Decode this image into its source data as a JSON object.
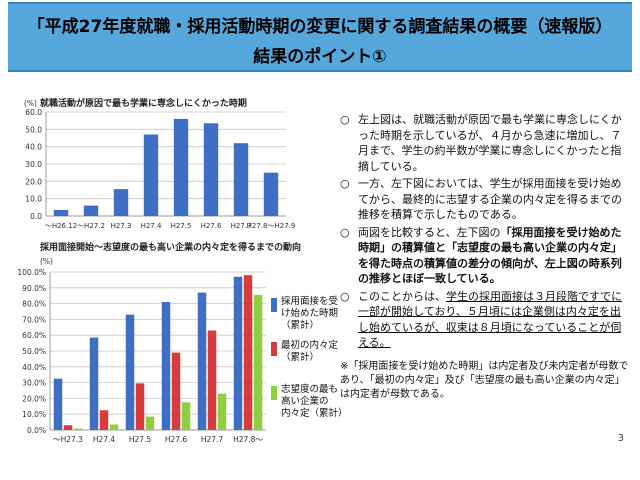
{
  "title": {
    "line1": "「平成27年度就職・採用活動時期の変更に関する調査結果の概要（速報版）",
    "line2": "結果のポイント①"
  },
  "chart_data": [
    {
      "type": "bar",
      "title": "就職活動が原因で最も学業に専念しにくかった時期",
      "ylabel": "(%)",
      "categories": [
        "～H26.12",
        "～H27.2",
        "H27.3",
        "H27.4",
        "H27.5",
        "H27.6",
        "H27.7",
        "H27.8～H27.9"
      ],
      "values": [
        3.5,
        6,
        15.5,
        47,
        56,
        53.5,
        42,
        25
      ],
      "ylim": [
        0,
        60
      ],
      "yticks": [
        "0.0",
        "10.0",
        "20.0",
        "30.0",
        "40.0",
        "50.0",
        "60.0"
      ],
      "grid": true,
      "colors": [
        "#3f6fc4"
      ]
    },
    {
      "type": "bar",
      "title": "採用面接開始～志望度の最も高い企業の内々定を得るまでの動向",
      "ylabel": "(%)",
      "categories": [
        "～H27.3",
        "H27.4",
        "H27.5",
        "H27.6",
        "H27.7",
        "H27.8～"
      ],
      "series": [
        {
          "name": "採用面接を受け始めた時期（累計）",
          "values": [
            32.5,
            58.5,
            73,
            81,
            87,
            97
          ],
          "color": "#3f6fc4"
        },
        {
          "name": "最初の内々定（累計）",
          "values": [
            3,
            12.5,
            29.5,
            49,
            63,
            98
          ],
          "color": "#d83b3b"
        },
        {
          "name": "志望度の最も高い企業の内々定（累計）",
          "values": [
            1,
            3.5,
            8.5,
            17.5,
            23,
            85.5
          ],
          "color": "#8fce3f"
        }
      ],
      "ylim": [
        0,
        100
      ],
      "yticks": [
        "0.0%",
        "10.0%",
        "20.0%",
        "30.0%",
        "40.0%",
        "50.0%",
        "60.0%",
        "70.0%",
        "80.0%",
        "90.0%",
        "100.0%"
      ],
      "grid": true,
      "legend": "right"
    }
  ],
  "legend": [
    {
      "label": "採用面接を受\nけ始めた時期\n（累計）",
      "color": "#3f6fc4"
    },
    {
      "label": "最初の内々定\n（累計）",
      "color": "#d83b3b"
    },
    {
      "label": "志望度の最も\n高い企業の\n内々定（累計）",
      "color": "#8fce3f"
    }
  ],
  "notes": {
    "mark": "○",
    "n1": "左上図は、就職活動が原因で最も学業に専念しにくかった時期を示しているが、４月から急速に増加し、７月まで、学生の約半数が学業に専念しにくかったと指摘している。",
    "n2": "一方、左下図においては、学生が採用面接を受け始めてから、最終的に志望する企業の内々定を得るまでの推移を積算で示したものである。",
    "n3a": "両図を比較すると、左下図の",
    "n3b": "「採用面接を受け始めた時期」の積算値と「志望度の最も高い企業の内々定」を得た時点の積算値の差分の傾向が、左上図の時系列の推移とほぼ一致している。",
    "n4a": "このことからは、",
    "n4b": "学生の採用面接は３月段階ですでに一部が開始しており、５月頃には企業側は内々定を出し始めているが、収束は８月頃になっていることが伺える。"
  },
  "footnote": "※「採用面接を受け始めた時期」は内定者及び未内定者が母数であり、「最初の内々定」及び「志望度の最も高い企業の内々定」は内定者が母数である。",
  "page_number": "3"
}
